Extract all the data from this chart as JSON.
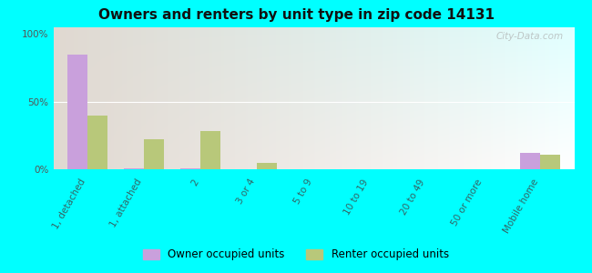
{
  "title": "Owners and renters by unit type in zip code 14131",
  "categories": [
    "1, detached",
    "1, attached",
    "2",
    "3 or 4",
    "5 to 9",
    "10 to 19",
    "20 to 49",
    "50 or more",
    "Mobile home"
  ],
  "owner_values": [
    85,
    1,
    1,
    0,
    0,
    0,
    0,
    0,
    12
  ],
  "renter_values": [
    40,
    22,
    28,
    5,
    0,
    0,
    0,
    0,
    11
  ],
  "owner_color": "#c9a0dc",
  "renter_color": "#b8c87a",
  "background_color": "#00ffff",
  "ylabel_ticks": [
    "0%",
    "50%",
    "100%"
  ],
  "yticks": [
    0,
    50,
    100
  ],
  "ylim": [
    0,
    105
  ],
  "bar_width": 0.35,
  "legend_owner": "Owner occupied units",
  "legend_renter": "Renter occupied units",
  "watermark": "City-Data.com"
}
